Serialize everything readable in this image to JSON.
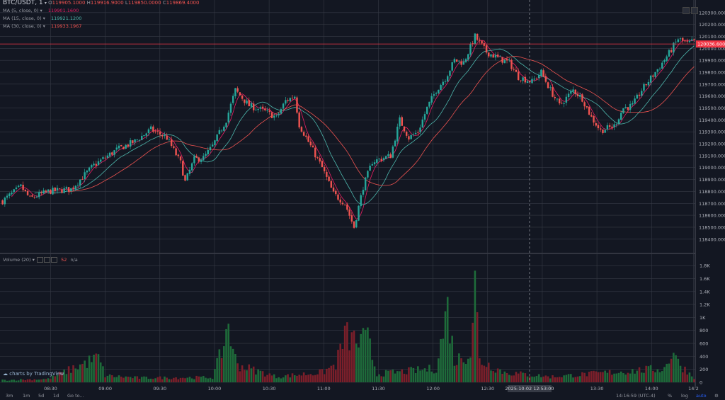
{
  "header": {
    "symbol": "BTC/USDT, 1",
    "open_label": "O",
    "open": "119905.1000",
    "high_label": "H",
    "high": "119916.9000",
    "low_label": "L",
    "low": "119850.0000",
    "close_label": "C",
    "close": "119869.4000"
  },
  "indicators": [
    {
      "label": "MA (5, close, 0)",
      "value": "119901.1600",
      "color": "#e91e63"
    },
    {
      "label": "MA (15, close, 0)",
      "value": "119921.1200",
      "color": "#4db6ac"
    },
    {
      "label": "MA (30, close, 0)",
      "value": "119933.1967",
      "color": "#ef5350"
    }
  ],
  "volume_indicator": {
    "label": "Volume (20)",
    "value": "52",
    "na": "n/a"
  },
  "branding": "charts by TradingView",
  "current_price_tag": "120036.6000",
  "crosshair_time": "2025-10-02 12:53:00",
  "timeframes": [
    "3m",
    "1m",
    "5d",
    "1d"
  ],
  "goto_label": "Go to...",
  "clock": "14:16:59 (UTC-4)",
  "percent_label": "%",
  "log_label": "log",
  "auto_label": "auto",
  "colors": {
    "up": "#26a69a",
    "down": "#ef5350",
    "background": "#131722",
    "grid": "#363a45",
    "price_line": "#f23645"
  },
  "chart_data": {
    "type": "candlestick",
    "price_axis": {
      "ticks": [
        120300,
        120200,
        120100,
        120000,
        119900,
        119800,
        119700,
        119600,
        119500,
        119400,
        119300,
        119200,
        119100,
        119000,
        118900,
        118800,
        118700,
        118600,
        118500,
        118400
      ],
      "tick_labels": [
        "120300.0000",
        "120200.0000",
        "120100.0000",
        "120000.0000",
        "119900.0000",
        "119800.0000",
        "119700.0000",
        "119600.0000",
        "119500.0000",
        "119400.0000",
        "119300.0000",
        "119200.0000",
        "119100.0000",
        "119000.0000",
        "118900.0000",
        "118800.0000",
        "118700.0000",
        "118600.0000",
        "118500.0000",
        "118400.0000"
      ],
      "range": [
        118280,
        120370
      ]
    },
    "volume_axis": {
      "ticks": [
        0,
        200,
        400,
        600,
        800,
        1000,
        1200,
        1400,
        1600,
        1800
      ],
      "tick_labels": [
        "0",
        "200",
        "400",
        "600",
        "800",
        "1K",
        "1.2K",
        "1.4K",
        "1.6K",
        "1.8K"
      ],
      "range": [
        0,
        1900
      ]
    },
    "time_axis": {
      "labels": [
        "08:30",
        "09:00",
        "09:30",
        "10:00",
        "10:30",
        "11:00",
        "11:30",
        "12:00",
        "12:30",
        "13:00",
        "13:30",
        "14:00",
        "14:2"
      ],
      "start": "08:03",
      "interval_minutes": 1
    },
    "current_price": 120036.6,
    "close_path": [
      [
        0,
        118720
      ],
      [
        8,
        118840
      ],
      [
        12,
        118740
      ],
      [
        20,
        118800
      ],
      [
        30,
        118820
      ],
      [
        40,
        119020
      ],
      [
        50,
        119150
      ],
      [
        58,
        119220
      ],
      [
        65,
        119320
      ],
      [
        72,
        119250
      ],
      [
        78,
        119040
      ],
      [
        80,
        118880
      ],
      [
        84,
        119070
      ],
      [
        88,
        119080
      ],
      [
        92,
        119180
      ],
      [
        98,
        119400
      ],
      [
        102,
        119650
      ],
      [
        108,
        119520
      ],
      [
        114,
        119480
      ],
      [
        120,
        119420
      ],
      [
        124,
        119560
      ],
      [
        128,
        119600
      ],
      [
        130,
        119360
      ],
      [
        135,
        119180
      ],
      [
        140,
        119000
      ],
      [
        145,
        118780
      ],
      [
        150,
        118700
      ],
      [
        154,
        118500
      ],
      [
        158,
        118840
      ],
      [
        162,
        119050
      ],
      [
        170,
        119100
      ],
      [
        174,
        119400
      ],
      [
        178,
        119250
      ],
      [
        182,
        119300
      ],
      [
        186,
        119500
      ],
      [
        190,
        119650
      ],
      [
        194,
        119750
      ],
      [
        198,
        119900
      ],
      [
        202,
        119880
      ],
      [
        207,
        120100
      ],
      [
        212,
        119970
      ],
      [
        218,
        119910
      ],
      [
        222,
        119880
      ],
      [
        226,
        119760
      ],
      [
        232,
        119720
      ],
      [
        236,
        119800
      ],
      [
        240,
        119650
      ],
      [
        244,
        119520
      ],
      [
        250,
        119650
      ],
      [
        254,
        119580
      ],
      [
        258,
        119420
      ],
      [
        262,
        119310
      ],
      [
        268,
        119350
      ],
      [
        272,
        119500
      ],
      [
        276,
        119520
      ],
      [
        280,
        119650
      ],
      [
        284,
        119750
      ],
      [
        288,
        119850
      ],
      [
        292,
        119960
      ],
      [
        296,
        120080
      ],
      [
        300,
        120040
      ],
      [
        303,
        120060
      ]
    ],
    "volume_profile": [
      [
        0,
        40
      ],
      [
        20,
        60
      ],
      [
        42,
        450
      ],
      [
        45,
        120
      ],
      [
        60,
        80
      ],
      [
        92,
        90
      ],
      [
        97,
        680
      ],
      [
        99,
        1150
      ],
      [
        101,
        500
      ],
      [
        104,
        300
      ],
      [
        120,
        100
      ],
      [
        140,
        180
      ],
      [
        146,
        320
      ],
      [
        150,
        850
      ],
      [
        156,
        720
      ],
      [
        160,
        780
      ],
      [
        164,
        150
      ],
      [
        190,
        250
      ],
      [
        195,
        1350
      ],
      [
        198,
        380
      ],
      [
        205,
        550
      ],
      [
        207,
        1800
      ],
      [
        209,
        400
      ],
      [
        220,
        180
      ],
      [
        240,
        100
      ],
      [
        260,
        160
      ],
      [
        290,
        250
      ],
      [
        294,
        600
      ],
      [
        296,
        350
      ],
      [
        303,
        90
      ]
    ]
  }
}
